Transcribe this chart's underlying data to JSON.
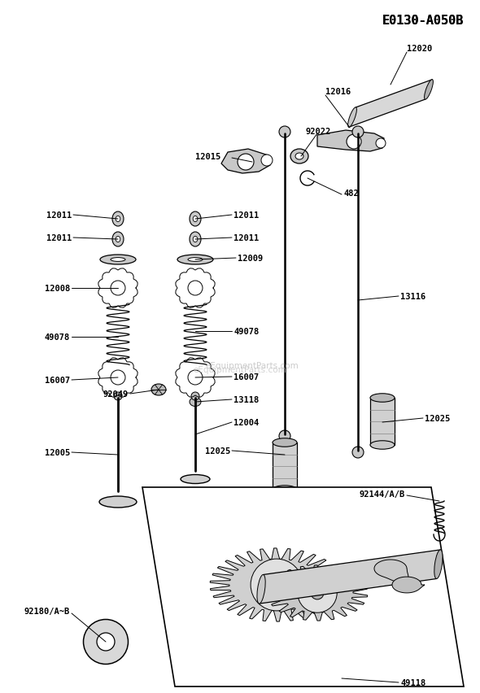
{
  "title": "E0130-A050B",
  "bg_color": "#ffffff",
  "watermark": "eEquipmentParts.com",
  "fig_w": 5.9,
  "fig_h": 8.53,
  "dpi": 100,
  "label_fontsize": 7.5,
  "label_fontweight": "bold"
}
